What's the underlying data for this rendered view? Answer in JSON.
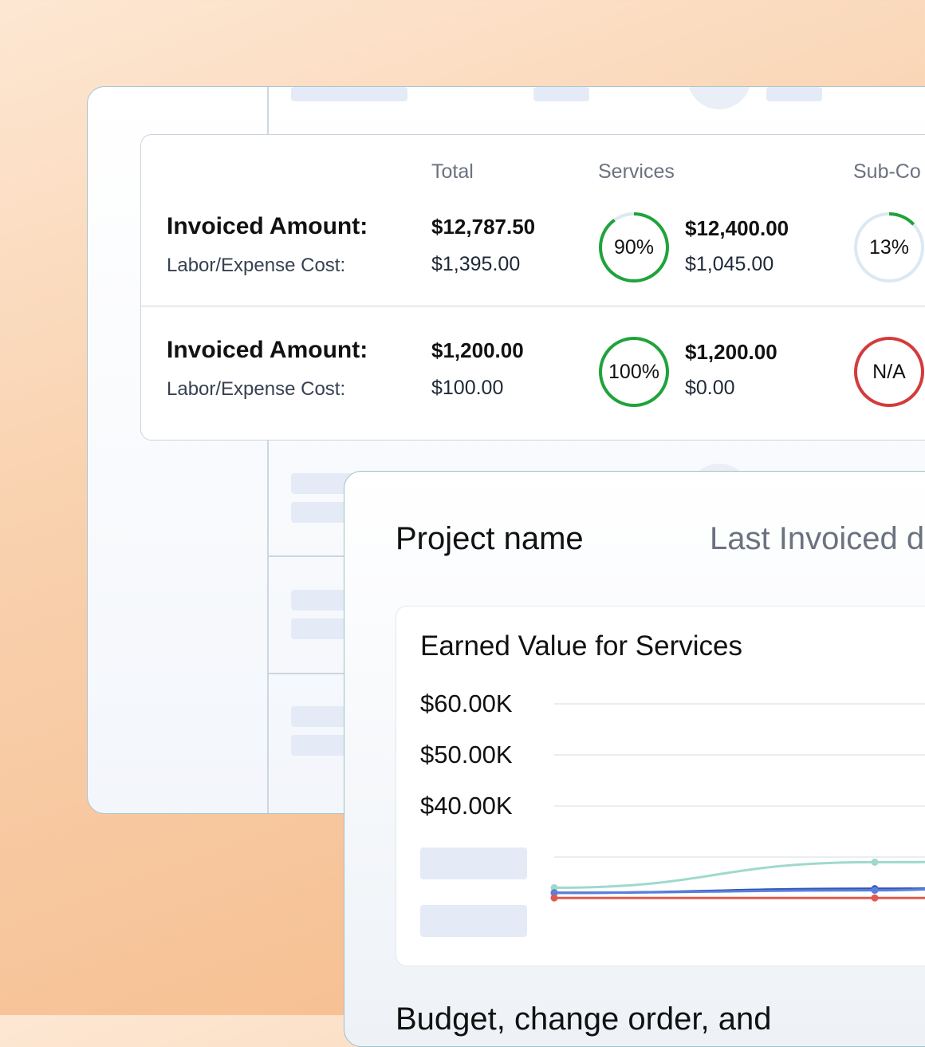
{
  "metrics": {
    "columns": {
      "total": "Total",
      "services": "Services",
      "sub": "Sub-Co"
    },
    "rows": [
      {
        "invoiced_label": "Invoiced Amount:",
        "cost_label": "Labor/Expense Cost:",
        "total_invoiced": "$12,787.50",
        "total_cost": "$1,395.00",
        "services_ring": {
          "label": "90%",
          "value": 0.9,
          "color": "#1fa33a"
        },
        "services_invoiced": "$12,400.00",
        "services_cost": "$1,045.00",
        "sub_ring": {
          "label": "13%",
          "value": 0.13,
          "color": "#1fa33a"
        }
      },
      {
        "invoiced_label": "Invoiced Amount:",
        "cost_label": "Labor/Expense Cost:",
        "total_invoiced": "$1,200.00",
        "total_cost": "$100.00",
        "services_ring": {
          "label": "100%",
          "value": 1.0,
          "color": "#1fa33a"
        },
        "services_invoiced": "$1,200.00",
        "services_cost": "$0.00",
        "sub_ring": {
          "label": "N/A",
          "value": 1.0,
          "color": "#d43b3b"
        }
      }
    ]
  },
  "project": {
    "title": "Project name",
    "last_invoiced": "Last Invoiced d"
  },
  "chart": {
    "title": "Earned Value for Services",
    "y_ticks": [
      "$60.00K",
      "$50.00K",
      "$40.00K"
    ]
  },
  "chart_data": {
    "type": "line",
    "title": "Earned Value for Services",
    "xlabel": "",
    "ylabel": "",
    "y_tick_labels": [
      "$60.00K",
      "$50.00K",
      "$40.00K"
    ],
    "grid": true,
    "series": [
      {
        "color": "#9fd9cc",
        "x": [
          0,
          1,
          2
        ],
        "values": [
          24,
          29,
          29.5
        ]
      },
      {
        "color": "#2f55b5",
        "x": [
          0,
          1,
          2
        ],
        "values": [
          23,
          23.8,
          24.5
        ]
      },
      {
        "color": "#5b7fdb",
        "x": [
          0,
          1,
          2
        ],
        "values": [
          23,
          23.5,
          28
        ]
      },
      {
        "color": "#e05a4f",
        "x": [
          0,
          1,
          2
        ],
        "values": [
          22,
          22,
          22
        ]
      }
    ]
  },
  "footer": {
    "text": "Budget, change order, and"
  }
}
